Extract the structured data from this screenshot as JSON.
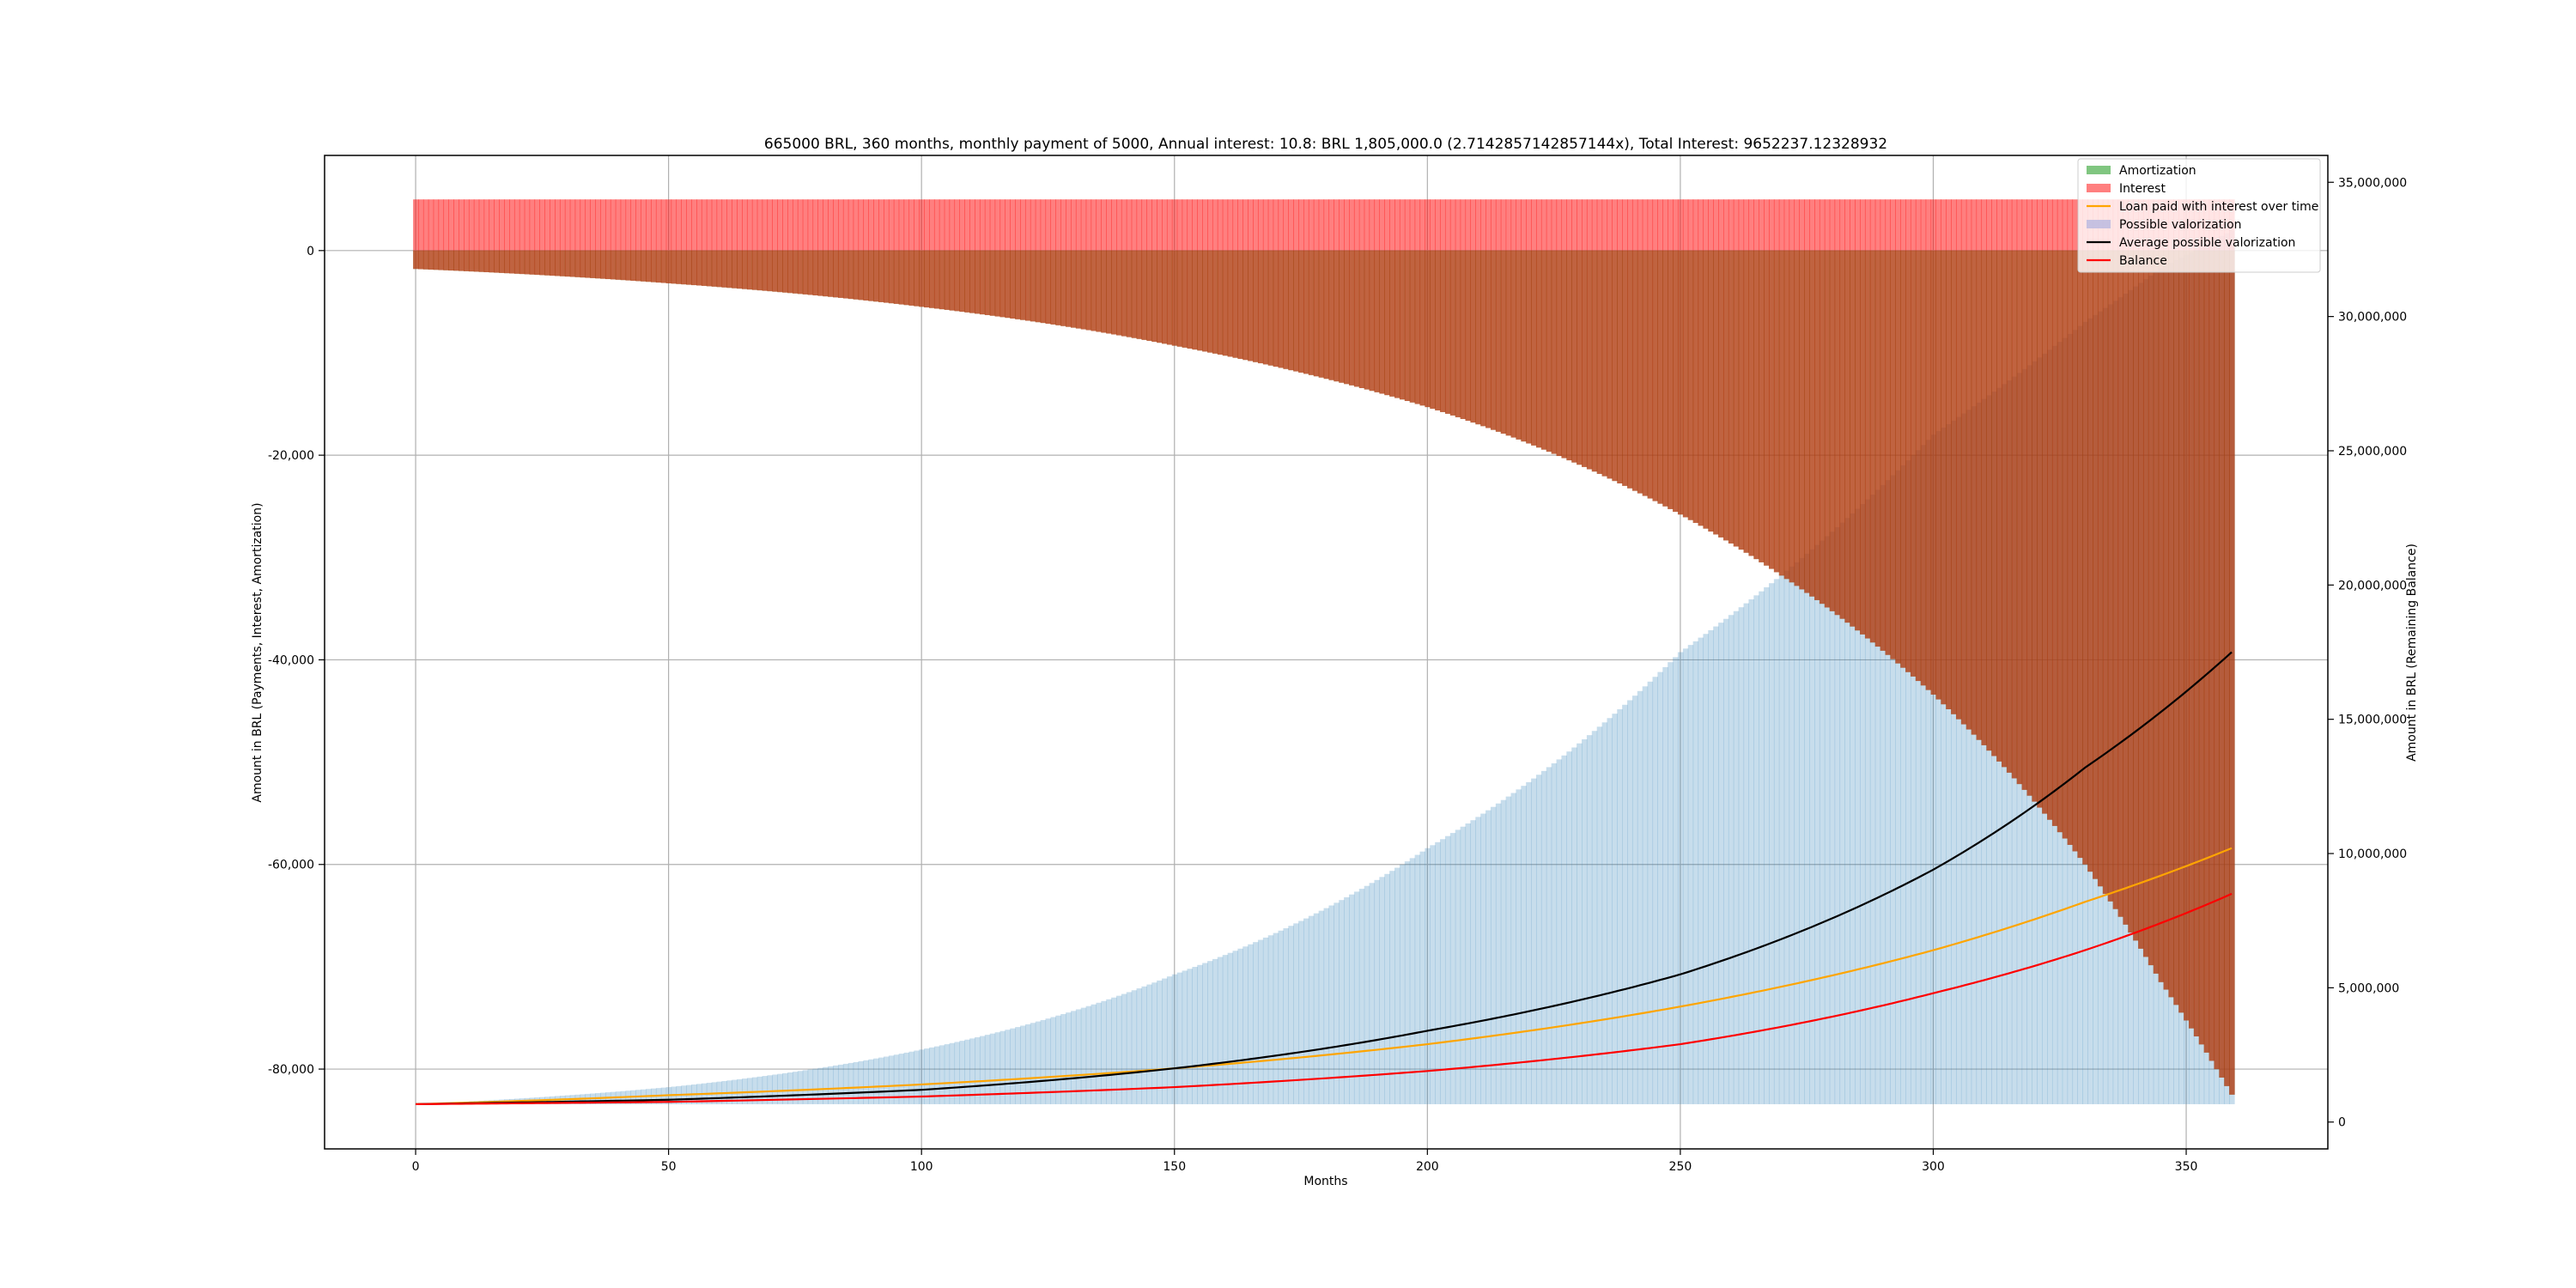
{
  "chart_data": {
    "type": "bar",
    "title": "665000 BRL, 360 months, monthly payment of 5000, Annual interest: 10.8: BRL 1,805,000.0 (2.7142857142857144x), Total Interest: 9652237.12328932",
    "xlabel": "Months",
    "ylabel": "Amount in BRL (Payments, Interest, Amortization)",
    "y2label": "Amount in BRL (Remaining Balance)",
    "xlim": [
      -18,
      378
    ],
    "ylim": [
      -87800,
      9300
    ],
    "y2lim": [
      -1000000,
      36000000
    ],
    "xticks": [
      0,
      50,
      100,
      150,
      200,
      250,
      300,
      350
    ],
    "xtick_labels": [
      "0",
      "50",
      "100",
      "150",
      "200",
      "250",
      "300",
      "350"
    ],
    "yticks": [
      0,
      -20000,
      -40000,
      -60000,
      -80000
    ],
    "ytick_labels": [
      "0",
      "-20,000",
      "-40,000",
      "-60,000",
      "-80,000"
    ],
    "y2ticks": [
      0,
      5000000,
      10000000,
      15000000,
      20000000,
      25000000,
      30000000,
      35000000
    ],
    "y2tick_labels": [
      "0",
      "5,000,000",
      "10,000,000",
      "15,000,000",
      "20,000,000",
      "25,000,000",
      "30,000,000",
      "35,000,000"
    ],
    "grid": true,
    "legend_position": "top-right",
    "months": 360,
    "series": [
      {
        "name": "Amortization",
        "type": "bar",
        "color": "#2ca02c",
        "alpha": 0.6,
        "axis": "left",
        "x": [
          0,
          50,
          100,
          150,
          200,
          250,
          300,
          330,
          345,
          359
        ],
        "values": [
          -1800,
          -3200,
          -5500,
          -9300,
          -15300,
          -25800,
          -43400,
          -60000,
          -71500,
          -82500
        ]
      },
      {
        "name": "Interest",
        "type": "bar",
        "color": "#ff0000",
        "alpha": 0.5,
        "axis": "left",
        "x": [
          0,
          359
        ],
        "values": [
          5000,
          5000
        ]
      },
      {
        "name": "Loan paid with interest over time",
        "type": "line",
        "color": "#ffa500",
        "axis": "right",
        "x": [
          0,
          50,
          100,
          150,
          200,
          250,
          300,
          330,
          359
        ],
        "values": [
          665000,
          1000000,
          1400000,
          2000000,
          2900000,
          4300000,
          6400000,
          8200000,
          10200000
        ]
      },
      {
        "name": "Possible valorization",
        "type": "area",
        "color": "#1f77b4",
        "alpha": 0.25,
        "axis": "right",
        "x": [
          0,
          50,
          100,
          150,
          200,
          250,
          300,
          330,
          345,
          359
        ],
        "values": [
          665000,
          1300000,
          2700000,
          5500000,
          10200000,
          17500000,
          25600000,
          29800000,
          31800000,
          33200000
        ]
      },
      {
        "name": "Average possible valorization",
        "type": "line",
        "color": "#000000",
        "axis": "right",
        "x": [
          0,
          50,
          100,
          150,
          200,
          250,
          300,
          330,
          359
        ],
        "values": [
          665000,
          830000,
          1200000,
          2000000,
          3400000,
          5500000,
          9400000,
          13200000,
          17500000
        ]
      },
      {
        "name": "Balance",
        "type": "line",
        "color": "#ff0000",
        "axis": "right",
        "x": [
          0,
          50,
          100,
          150,
          200,
          250,
          300,
          330,
          359
        ],
        "values": [
          665000,
          750000,
          950000,
          1300000,
          1900000,
          2900000,
          4800000,
          6400000,
          8500000
        ]
      }
    ]
  }
}
